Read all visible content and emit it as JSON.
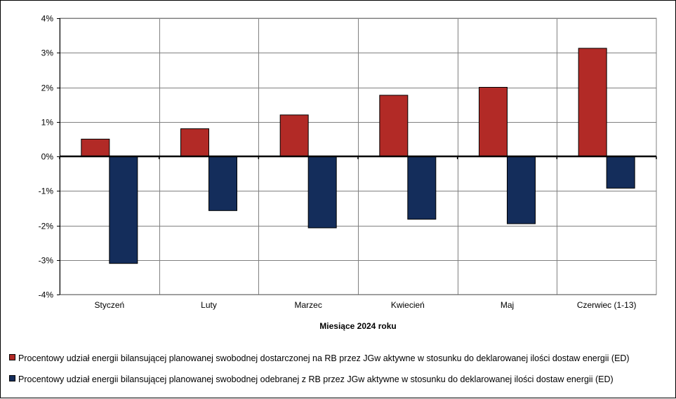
{
  "chart_data": {
    "type": "bar",
    "categories": [
      "Styczeń",
      "Luty",
      "Marzec",
      "Kwiecień",
      "Maj",
      "Czerwiec (1-13)"
    ],
    "series": [
      {
        "name": "Procentowy udział energii bilansującej planowanej swobodnej dostarczonej na RB przez JGw aktywne w stosunku do deklarowanej ilości dostaw energii (ED)",
        "color": "#b22a26",
        "values": [
          0.5,
          0.8,
          1.2,
          1.77,
          2.0,
          3.13
        ]
      },
      {
        "name": "Procentowy udział energii bilansującej planowanej swobodnej odebranej z RB przez JGw aktywne w stosunku do deklarowanej ilości dostaw energii (ED)",
        "color": "#142d5b",
        "values": [
          -3.1,
          -1.57,
          -2.07,
          -1.82,
          -1.95,
          -0.92
        ]
      }
    ],
    "xlabel": "Miesiące 2024  roku",
    "ylabel": "",
    "ylim": [
      -4,
      4
    ],
    "yticks": [
      4,
      3,
      2,
      1,
      0,
      -1,
      -2,
      -3,
      -4
    ],
    "ytick_labels": [
      "4%",
      "3%",
      "2%",
      "1%",
      "0%",
      "-1%",
      "-2%",
      "-3%",
      "-4%"
    ],
    "grid": true,
    "legend_position": "bottom"
  }
}
